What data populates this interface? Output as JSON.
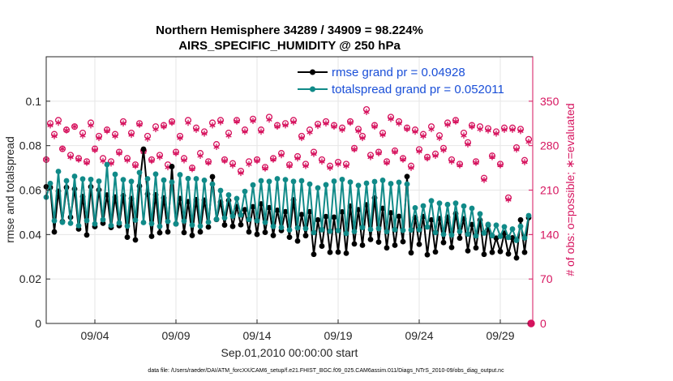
{
  "chart_data": {
    "type": "line",
    "title": "Northern Hemisphere 34289 / 34909 = 98.224%",
    "subtitle": "AIRS_SPECIFIC_HUMIDITY @ 250 hPa",
    "xlabel": "Sep.01,2010 00:00:00 start",
    "ylabel": "rmse and totalspread",
    "y2label": "# of obs: o=possible; ∗=evaluated",
    "footnote": "data file: /Users/raeder/DAI/ATM_forcXX/CAM6_setup/f.e21.FHIST_BGC.f09_025.CAM6assim.011/Diags_NTrS_2010-09/obs_diag_output.nc",
    "xlim": [
      1.0,
      31.0
    ],
    "ylim": [
      0,
      0.12
    ],
    "y2lim": [
      0,
      420
    ],
    "x_ticks": [
      {
        "x": 4.0,
        "label": "09/04"
      },
      {
        "x": 9.0,
        "label": "09/09"
      },
      {
        "x": 14.0,
        "label": "09/14"
      },
      {
        "x": 19.0,
        "label": "09/19"
      },
      {
        "x": 24.0,
        "label": "09/24"
      },
      {
        "x": 29.0,
        "label": "09/29"
      }
    ],
    "y_ticks": [
      {
        "v": 0,
        "label": "0"
      },
      {
        "v": 0.02,
        "label": "0.02"
      },
      {
        "v": 0.04,
        "label": "0.04"
      },
      {
        "v": 0.06,
        "label": "0.06"
      },
      {
        "v": 0.08,
        "label": "0.08"
      },
      {
        "v": 0.1,
        "label": "0.1"
      }
    ],
    "y2_ticks": [
      {
        "v": 0,
        "label": "0"
      },
      {
        "v": 70,
        "label": "70"
      },
      {
        "v": 140,
        "label": "140"
      },
      {
        "v": 210,
        "label": "210"
      },
      {
        "v": 280,
        "label": "280"
      },
      {
        "v": 350,
        "label": "350"
      }
    ],
    "grid": true,
    "legend_position": "top-right",
    "colors": {
      "rmse": "#000000",
      "spread": "#108a88",
      "obs": "#d6135e"
    },
    "x": [
      1.0,
      1.25,
      1.5,
      1.75,
      2.0,
      2.25,
      2.5,
      2.75,
      3.0,
      3.25,
      3.5,
      3.75,
      4.0,
      4.25,
      4.5,
      4.75,
      5.0,
      5.25,
      5.5,
      5.75,
      6.0,
      6.25,
      6.5,
      6.75,
      7.0,
      7.25,
      7.5,
      7.75,
      8.0,
      8.25,
      8.5,
      8.75,
      9.0,
      9.25,
      9.5,
      9.75,
      10.0,
      10.25,
      10.5,
      10.75,
      11.0,
      11.25,
      11.5,
      11.75,
      12.0,
      12.25,
      12.5,
      12.75,
      13.0,
      13.25,
      13.5,
      13.75,
      14.0,
      14.25,
      14.5,
      14.75,
      15.0,
      15.25,
      15.5,
      15.75,
      16.0,
      16.25,
      16.5,
      16.75,
      17.0,
      17.25,
      17.5,
      17.75,
      18.0,
      18.25,
      18.5,
      18.75,
      19.0,
      19.25,
      19.5,
      19.75,
      20.0,
      20.25,
      20.5,
      20.75,
      21.0,
      21.25,
      21.5,
      21.75,
      22.0,
      22.25,
      22.5,
      22.75,
      23.0,
      23.25,
      23.5,
      23.75,
      24.0,
      24.25,
      24.5,
      24.75,
      25.0,
      25.25,
      25.5,
      25.75,
      26.0,
      26.25,
      26.5,
      26.75,
      27.0,
      27.25,
      27.5,
      27.75,
      28.0,
      28.25,
      28.5,
      28.75,
      29.0,
      29.25,
      29.5,
      29.75,
      30.0,
      30.25,
      30.5,
      30.75
    ],
    "series": [
      {
        "name": "rmse grand pr = 0.04928",
        "key": "rmse",
        "marker": "dot",
        "values": [
          0.0615,
          0.0612,
          0.0412,
          0.0595,
          0.0458,
          0.0612,
          0.0478,
          0.0605,
          0.0425,
          0.0571,
          0.0398,
          0.0615,
          0.0436,
          0.0601,
          0.0451,
          0.0578,
          0.0432,
          0.0569,
          0.044,
          0.0575,
          0.0388,
          0.0562,
          0.0376,
          0.0618,
          0.0784,
          0.0582,
          0.0392,
          0.0579,
          0.0408,
          0.0565,
          0.0412,
          0.0706,
          0.0448,
          0.0562,
          0.0409,
          0.0548,
          0.0396,
          0.0557,
          0.0412,
          0.0555,
          0.0434,
          0.066,
          0.0468,
          0.0546,
          0.0443,
          0.0553,
          0.0437,
          0.0526,
          0.0444,
          0.0512,
          0.0412,
          0.0525,
          0.0401,
          0.0538,
          0.041,
          0.0521,
          0.0396,
          0.0509,
          0.0418,
          0.0503,
          0.0388,
          0.0556,
          0.0371,
          0.049,
          0.0395,
          0.0503,
          0.0311,
          0.0466,
          0.0348,
          0.0481,
          0.032,
          0.0478,
          0.0321,
          0.0502,
          0.0316,
          0.0528,
          0.0358,
          0.0512,
          0.0352,
          0.0534,
          0.0378,
          0.0565,
          0.0366,
          0.0518,
          0.034,
          0.0498,
          0.0352,
          0.0482,
          0.0368,
          0.0661,
          0.0318,
          0.0477,
          0.0356,
          0.0481,
          0.0309,
          0.0466,
          0.0322,
          0.0472,
          0.0364,
          0.0478,
          0.0342,
          0.0494,
          0.0384,
          0.0471,
          0.0327,
          0.0445,
          0.034,
          0.0465,
          0.0311,
          0.0442,
          0.032,
          0.0384,
          0.0324,
          0.0406,
          0.0313,
          0.0385,
          0.0295,
          0.0466,
          0.032,
          0.0476
        ]
      },
      {
        "name": "totalspread grand pr = 0.052011",
        "key": "spread",
        "marker": "dot",
        "values": [
          0.0568,
          0.063,
          0.0462,
          0.0684,
          0.0455,
          0.0642,
          0.0451,
          0.0662,
          0.044,
          0.065,
          0.0463,
          0.0648,
          0.0448,
          0.064,
          0.0467,
          0.0715,
          0.0441,
          0.0671,
          0.0452,
          0.0647,
          0.0438,
          0.0639,
          0.0465,
          0.0679,
          0.0454,
          0.0651,
          0.0449,
          0.0672,
          0.0437,
          0.0645,
          0.0459,
          0.0636,
          0.0448,
          0.0669,
          0.0461,
          0.0652,
          0.0443,
          0.0651,
          0.0438,
          0.0644,
          0.0456,
          0.0627,
          0.0469,
          0.0598,
          0.0475,
          0.0578,
          0.0483,
          0.0562,
          0.0488,
          0.0594,
          0.0468,
          0.0623,
          0.0462,
          0.0642,
          0.0455,
          0.0639,
          0.0437,
          0.0651,
          0.0432,
          0.0647,
          0.0421,
          0.0639,
          0.043,
          0.0642,
          0.0427,
          0.0627,
          0.0409,
          0.061,
          0.0422,
          0.0624,
          0.0415,
          0.064,
          0.0418,
          0.0648,
          0.0405,
          0.0636,
          0.0414,
          0.0621,
          0.0432,
          0.0631,
          0.0423,
          0.0638,
          0.0427,
          0.0644,
          0.0413,
          0.0629,
          0.0422,
          0.0635,
          0.0419,
          0.0627,
          0.0421,
          0.052,
          0.0422,
          0.0529,
          0.0434,
          0.0552,
          0.0409,
          0.0541,
          0.0401,
          0.0535,
          0.0398,
          0.0541,
          0.0414,
          0.0528,
          0.0402,
          0.0518,
          0.0394,
          0.0493,
          0.0407,
          0.0446,
          0.0395,
          0.0442,
          0.0392,
          0.0435,
          0.0387,
          0.0425,
          0.0374,
          0.0437,
          0.0385,
          0.0485
        ]
      }
    ],
    "obs_possible": [
      258,
      315,
      298,
      320,
      275,
      305,
      265,
      310,
      260,
      300,
      255,
      316,
      275,
      295,
      260,
      305,
      255,
      298,
      270,
      318,
      260,
      300,
      250,
      315,
      272,
      295,
      258,
      310,
      265,
      312,
      250,
      318,
      270,
      295,
      260,
      320,
      245,
      308,
      268,
      302,
      255,
      316,
      282,
      320,
      258,
      300,
      252,
      320,
      240,
      305,
      255,
      322,
      258,
      305,
      246,
      325,
      260,
      312,
      268,
      315,
      250,
      320,
      263,
      295,
      251,
      305,
      270,
      314,
      258,
      318,
      248,
      312,
      254,
      308,
      251,
      318,
      276,
      306,
      295,
      337,
      265,
      312,
      270,
      300,
      255,
      325,
      272,
      318,
      260,
      308,
      248,
      305,
      274,
      298,
      262,
      310,
      267,
      296,
      276,
      316,
      258,
      320,
      251,
      300,
      285,
      312,
      255,
      310,
      229,
      307,
      264,
      302,
      251,
      308,
      198,
      308,
      277,
      306,
      257,
      290
    ],
    "obs_evaluated": [
      258,
      312,
      295,
      316,
      275,
      304,
      262,
      310,
      258,
      296,
      253,
      312,
      273,
      292,
      256,
      303,
      252,
      295,
      268,
      315,
      257,
      297,
      248,
      313,
      270,
      291,
      256,
      306,
      262,
      310,
      246,
      316,
      268,
      292,
      257,
      316,
      243,
      305,
      264,
      299,
      253,
      312,
      278,
      317,
      256,
      296,
      249,
      318,
      237,
      302,
      251,
      319,
      256,
      302,
      244,
      321,
      258,
      310,
      265,
      312,
      248,
      317,
      260,
      292,
      248,
      301,
      267,
      311,
      255,
      315,
      245,
      310,
      251,
      305,
      248,
      316,
      274,
      303,
      292,
      333,
      262,
      310,
      268,
      297,
      253,
      322,
      270,
      315,
      258,
      306,
      245,
      302,
      271,
      295,
      260,
      306,
      264,
      292,
      273,
      313,
      255,
      318,
      249,
      296,
      282,
      310,
      253,
      306,
      226,
      304,
      262,
      299,
      249,
      305,
      195,
      305,
      274,
      303,
      254,
      286
    ]
  }
}
